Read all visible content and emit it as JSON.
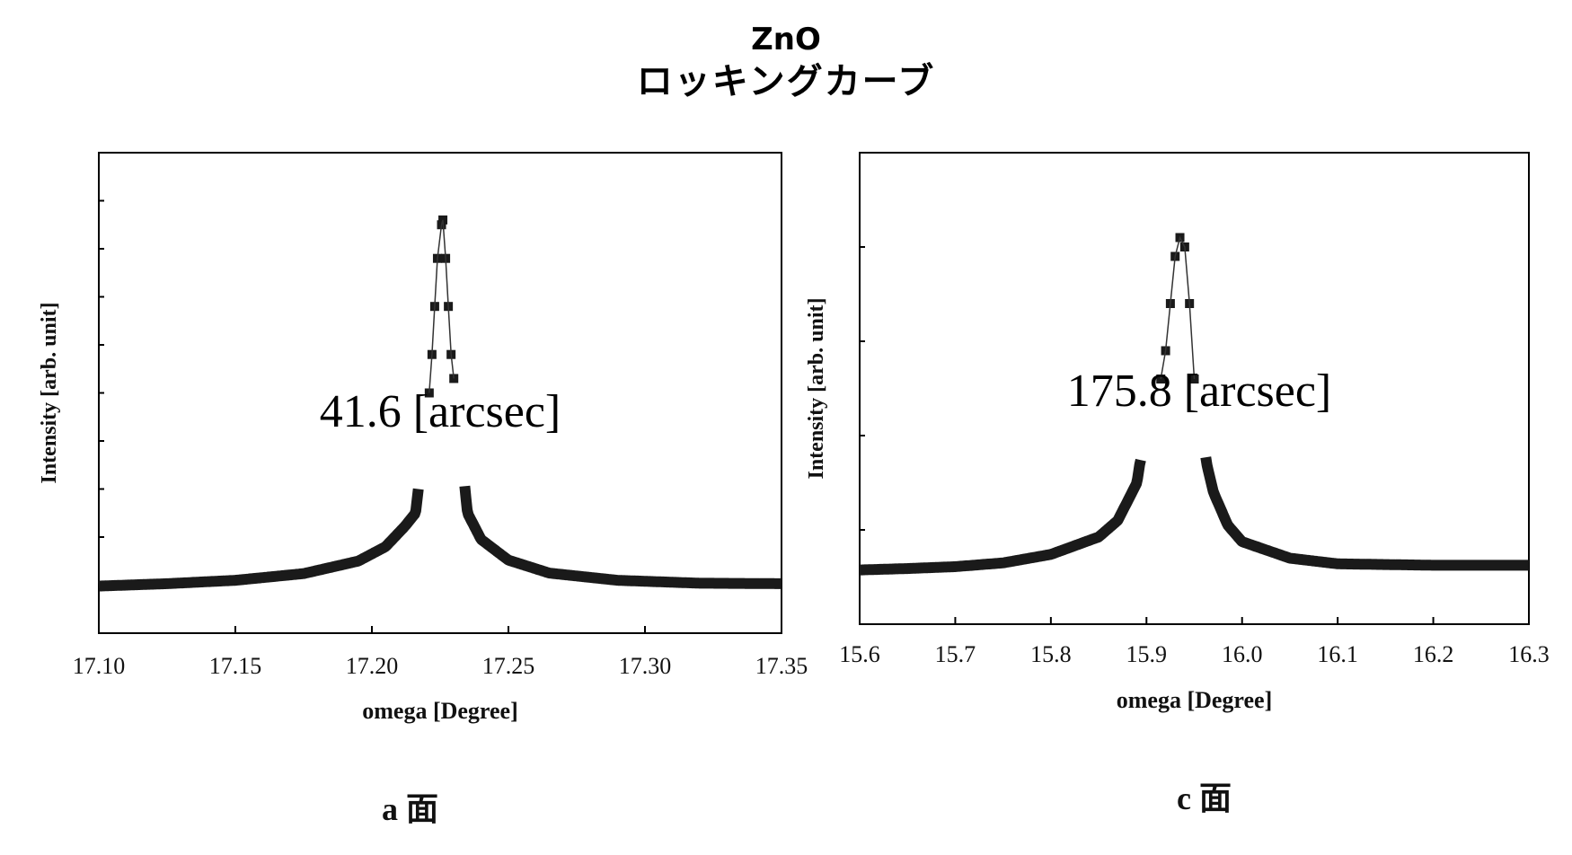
{
  "title": {
    "line1": "ZnO",
    "line2": "ロッキングカーブ"
  },
  "chart_data": [
    {
      "type": "scatter",
      "xlabel": "omega [Degree]",
      "ylabel": "Intensity [arb. unit]",
      "xlim": [
        17.1,
        17.35
      ],
      "ylim": [
        0,
        1
      ],
      "ylog": true,
      "xticks": [
        "17.10",
        "17.15",
        "17.20",
        "17.25",
        "17.30",
        "17.35"
      ],
      "annotation": "41.6 [arcsec]",
      "caption": "a 面",
      "peak_center": 17.2255,
      "peak_fwhm_arcsec": 41.6,
      "baseline": 0.1,
      "series": [
        {
          "values": [
            [
              17.1,
              0.098
            ],
            [
              17.125,
              0.103
            ],
            [
              17.15,
              0.11
            ],
            [
              17.175,
              0.124
            ],
            [
              17.195,
              0.15
            ],
            [
              17.205,
              0.18
            ],
            [
              17.212,
              0.222
            ],
            [
              17.216,
              0.25
            ],
            [
              17.221,
              0.5
            ],
            [
              17.222,
              0.58
            ],
            [
              17.223,
              0.68
            ],
            [
              17.224,
              0.78
            ],
            [
              17.2255,
              0.85
            ],
            [
              17.226,
              0.86
            ],
            [
              17.227,
              0.78
            ],
            [
              17.228,
              0.68
            ],
            [
              17.229,
              0.58
            ],
            [
              17.23,
              0.53
            ],
            [
              17.235,
              0.25
            ],
            [
              17.24,
              0.195
            ],
            [
              17.25,
              0.152
            ],
            [
              17.265,
              0.125
            ],
            [
              17.29,
              0.11
            ],
            [
              17.32,
              0.104
            ],
            [
              17.35,
              0.103
            ]
          ]
        }
      ]
    },
    {
      "type": "scatter",
      "xlabel": "omega [Degree]",
      "ylabel": "Intensity [arb. unit]",
      "xlim": [
        15.6,
        16.3
      ],
      "ylim": [
        0,
        1
      ],
      "ylog": true,
      "xticks": [
        "15.6",
        "15.7",
        "15.8",
        "15.9",
        "16.0",
        "16.1",
        "16.2",
        "16.3"
      ],
      "annotation": "175.8 [arcsec]",
      "caption": "c 面",
      "peak_center": 15.935,
      "peak_fwhm_arcsec": 175.8,
      "baseline": 0.12,
      "series": [
        {
          "values": [
            [
              15.6,
              0.115
            ],
            [
              15.65,
              0.118
            ],
            [
              15.7,
              0.122
            ],
            [
              15.75,
              0.13
            ],
            [
              15.8,
              0.148
            ],
            [
              15.85,
              0.185
            ],
            [
              15.87,
              0.22
            ],
            [
              15.89,
              0.3
            ],
            [
              15.893,
              0.34
            ],
            [
              15.915,
              0.52
            ],
            [
              15.92,
              0.58
            ],
            [
              15.925,
              0.68
            ],
            [
              15.93,
              0.78
            ],
            [
              15.935,
              0.82
            ],
            [
              15.94,
              0.8
            ],
            [
              15.945,
              0.68
            ],
            [
              15.95,
              0.52
            ],
            [
              15.963,
              0.34
            ],
            [
              15.97,
              0.28
            ],
            [
              15.985,
              0.21
            ],
            [
              16.0,
              0.175
            ],
            [
              16.05,
              0.14
            ],
            [
              16.1,
              0.128
            ],
            [
              16.2,
              0.125
            ],
            [
              16.3,
              0.125
            ]
          ]
        }
      ]
    }
  ]
}
